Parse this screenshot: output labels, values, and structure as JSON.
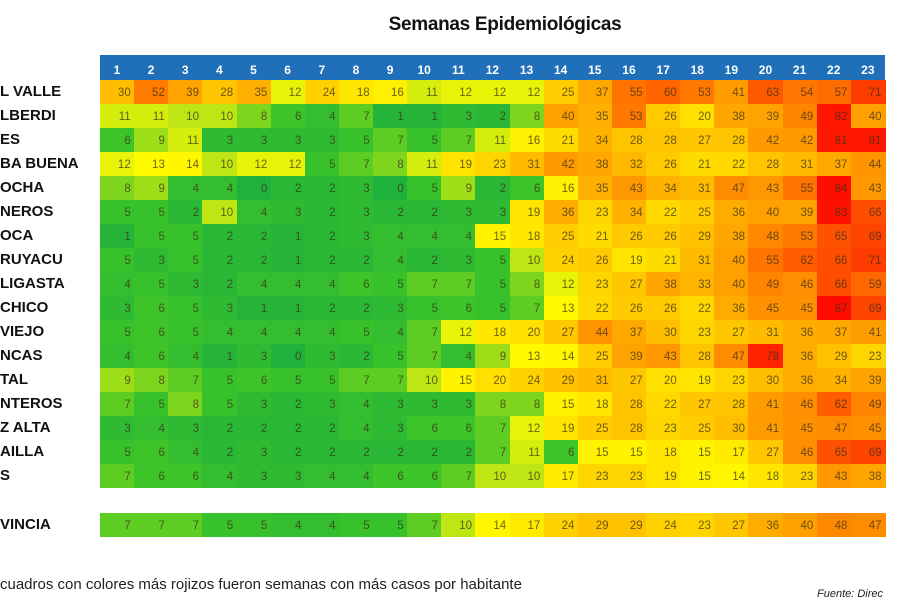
{
  "chart_data": {
    "type": "heatmap",
    "title": "Semanas Epidemiológicas",
    "columns": [
      "1",
      "2",
      "3",
      "4",
      "5",
      "6",
      "7",
      "8",
      "9",
      "10",
      "11",
      "12",
      "13",
      "14",
      "15",
      "16",
      "17",
      "18",
      "19",
      "20",
      "21",
      "22",
      "23"
    ],
    "color_scale": {
      "low": "#1fb83a",
      "mid": "#ffff00",
      "high": "#ff0000"
    },
    "header_color": "#1f70b8",
    "rows": [
      {
        "label": "L VALLE",
        "values": [
          30,
          52,
          39,
          28,
          35,
          12,
          24,
          18,
          16,
          11,
          12,
          12,
          12,
          25,
          37,
          55,
          60,
          53,
          41,
          63,
          54,
          57,
          71
        ]
      },
      {
        "label": "LBERDI",
        "values": [
          11,
          11,
          10,
          10,
          8,
          6,
          4,
          7,
          1,
          1,
          3,
          2,
          8,
          40,
          35,
          53,
          26,
          20,
          38,
          39,
          49,
          82,
          40
        ]
      },
      {
        "label": "ES",
        "values": [
          6,
          9,
          11,
          3,
          3,
          3,
          3,
          5,
          7,
          5,
          7,
          11,
          16,
          21,
          34,
          28,
          28,
          27,
          28,
          42,
          42,
          81,
          81
        ]
      },
      {
        "label": "BA BUENA",
        "values": [
          12,
          13,
          14,
          10,
          12,
          12,
          5,
          7,
          8,
          11,
          19,
          23,
          31,
          42,
          38,
          32,
          26,
          21,
          22,
          28,
          31,
          37,
          44
        ]
      },
      {
        "label": "OCHA",
        "values": [
          8,
          9,
          4,
          4,
          0,
          2,
          2,
          3,
          0,
          5,
          9,
          2,
          6,
          16,
          35,
          43,
          34,
          31,
          47,
          43,
          55,
          84,
          43
        ]
      },
      {
        "label": "NEROS",
        "values": [
          5,
          5,
          2,
          10,
          4,
          3,
          2,
          3,
          2,
          2,
          3,
          3,
          19,
          36,
          23,
          34,
          22,
          25,
          36,
          40,
          39,
          83,
          66
        ]
      },
      {
        "label": "OCA",
        "values": [
          1,
          5,
          5,
          2,
          2,
          1,
          2,
          3,
          4,
          4,
          4,
          15,
          18,
          25,
          21,
          26,
          26,
          29,
          38,
          48,
          53,
          65,
          69
        ]
      },
      {
        "label": "RUYACU",
        "values": [
          5,
          3,
          5,
          2,
          2,
          1,
          2,
          2,
          4,
          2,
          3,
          5,
          10,
          24,
          26,
          19,
          21,
          31,
          40,
          55,
          62,
          66,
          71
        ]
      },
      {
        "label": "LIGASTA",
        "values": [
          4,
          5,
          3,
          2,
          4,
          4,
          4,
          6,
          5,
          7,
          7,
          5,
          8,
          12,
          23,
          27,
          38,
          33,
          40,
          49,
          46,
          66,
          59
        ]
      },
      {
        "label": "CHICO",
        "values": [
          3,
          6,
          5,
          3,
          1,
          1,
          2,
          2,
          3,
          5,
          6,
          5,
          7,
          13,
          22,
          26,
          26,
          22,
          36,
          45,
          45,
          87,
          69
        ]
      },
      {
        "label": "VIEJO",
        "values": [
          5,
          6,
          5,
          4,
          4,
          4,
          4,
          5,
          4,
          7,
          12,
          18,
          20,
          27,
          44,
          37,
          30,
          23,
          27,
          31,
          36,
          37,
          41
        ]
      },
      {
        "label": "NCAS",
        "values": [
          4,
          6,
          4,
          1,
          3,
          0,
          3,
          2,
          5,
          7,
          4,
          9,
          13,
          14,
          25,
          39,
          43,
          28,
          47,
          78,
          36,
          29,
          23
        ]
      },
      {
        "label": "TAL",
        "values": [
          9,
          8,
          7,
          5,
          6,
          5,
          5,
          7,
          7,
          10,
          15,
          20,
          24,
          29,
          31,
          27,
          20,
          19,
          23,
          30,
          36,
          34,
          39
        ]
      },
      {
        "label": "NTEROS",
        "values": [
          7,
          5,
          8,
          5,
          3,
          2,
          3,
          4,
          3,
          3,
          3,
          8,
          8,
          15,
          18,
          28,
          22,
          27,
          28,
          41,
          46,
          62,
          49
        ]
      },
      {
        "label": "Z ALTA",
        "values": [
          3,
          4,
          3,
          2,
          2,
          2,
          2,
          4,
          3,
          6,
          6,
          7,
          12,
          19,
          25,
          28,
          23,
          25,
          30,
          41,
          45,
          47,
          45
        ]
      },
      {
        "label": "AILLA",
        "values": [
          5,
          6,
          4,
          2,
          3,
          2,
          2,
          2,
          2,
          2,
          2,
          7,
          11,
          6,
          15,
          15,
          18,
          15,
          17,
          27,
          46,
          65,
          69
        ]
      },
      {
        "label": "S",
        "values": [
          7,
          6,
          6,
          4,
          3,
          3,
          4,
          4,
          6,
          6,
          7,
          10,
          10,
          17,
          23,
          23,
          19,
          15,
          14,
          18,
          23,
          43,
          38
        ]
      }
    ],
    "total_row": {
      "label": "VINCIA",
      "values": [
        7,
        7,
        7,
        5,
        5,
        4,
        4,
        5,
        5,
        7,
        10,
        14,
        17,
        24,
        29,
        29,
        24,
        23,
        27,
        36,
        40,
        48,
        47
      ]
    }
  },
  "note": "cuadros con colores más rojizos fueron semanas con más casos por habitante",
  "source": "Fuente: Direc"
}
